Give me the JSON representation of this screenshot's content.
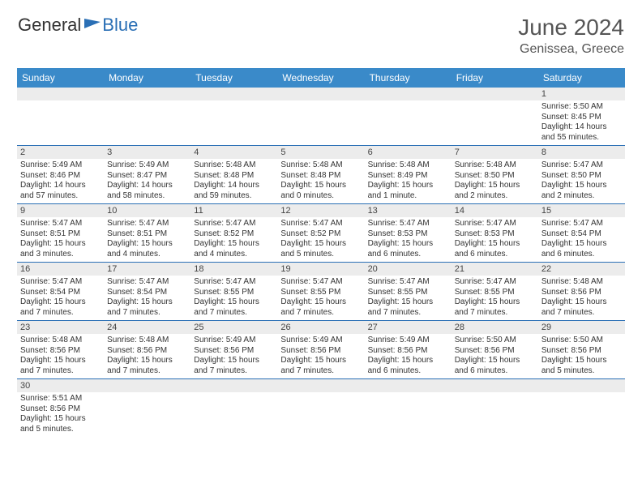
{
  "branding": {
    "general": "General",
    "blue": "Blue"
  },
  "header": {
    "month_title": "June 2024",
    "location": "Genissea, Greece"
  },
  "colors": {
    "header_bg": "#3a8ac9",
    "header_text": "#ffffff",
    "daynum_bg": "#ececec",
    "cell_text": "#333333",
    "border": "#2a6fb5",
    "brand_dark": "#333333",
    "brand_blue": "#2a6fb5"
  },
  "day_names": [
    "Sunday",
    "Monday",
    "Tuesday",
    "Wednesday",
    "Thursday",
    "Friday",
    "Saturday"
  ],
  "weeks": [
    {
      "numbers": [
        "",
        "",
        "",
        "",
        "",
        "",
        "1"
      ],
      "cells": [
        null,
        null,
        null,
        null,
        null,
        null,
        {
          "sunrise": "Sunrise: 5:50 AM",
          "sunset": "Sunset: 8:45 PM",
          "daylight1": "Daylight: 14 hours",
          "daylight2": "and 55 minutes."
        }
      ]
    },
    {
      "numbers": [
        "2",
        "3",
        "4",
        "5",
        "6",
        "7",
        "8"
      ],
      "cells": [
        {
          "sunrise": "Sunrise: 5:49 AM",
          "sunset": "Sunset: 8:46 PM",
          "daylight1": "Daylight: 14 hours",
          "daylight2": "and 57 minutes."
        },
        {
          "sunrise": "Sunrise: 5:49 AM",
          "sunset": "Sunset: 8:47 PM",
          "daylight1": "Daylight: 14 hours",
          "daylight2": "and 58 minutes."
        },
        {
          "sunrise": "Sunrise: 5:48 AM",
          "sunset": "Sunset: 8:48 PM",
          "daylight1": "Daylight: 14 hours",
          "daylight2": "and 59 minutes."
        },
        {
          "sunrise": "Sunrise: 5:48 AM",
          "sunset": "Sunset: 8:48 PM",
          "daylight1": "Daylight: 15 hours",
          "daylight2": "and 0 minutes."
        },
        {
          "sunrise": "Sunrise: 5:48 AM",
          "sunset": "Sunset: 8:49 PM",
          "daylight1": "Daylight: 15 hours",
          "daylight2": "and 1 minute."
        },
        {
          "sunrise": "Sunrise: 5:48 AM",
          "sunset": "Sunset: 8:50 PM",
          "daylight1": "Daylight: 15 hours",
          "daylight2": "and 2 minutes."
        },
        {
          "sunrise": "Sunrise: 5:47 AM",
          "sunset": "Sunset: 8:50 PM",
          "daylight1": "Daylight: 15 hours",
          "daylight2": "and 2 minutes."
        }
      ]
    },
    {
      "numbers": [
        "9",
        "10",
        "11",
        "12",
        "13",
        "14",
        "15"
      ],
      "cells": [
        {
          "sunrise": "Sunrise: 5:47 AM",
          "sunset": "Sunset: 8:51 PM",
          "daylight1": "Daylight: 15 hours",
          "daylight2": "and 3 minutes."
        },
        {
          "sunrise": "Sunrise: 5:47 AM",
          "sunset": "Sunset: 8:51 PM",
          "daylight1": "Daylight: 15 hours",
          "daylight2": "and 4 minutes."
        },
        {
          "sunrise": "Sunrise: 5:47 AM",
          "sunset": "Sunset: 8:52 PM",
          "daylight1": "Daylight: 15 hours",
          "daylight2": "and 4 minutes."
        },
        {
          "sunrise": "Sunrise: 5:47 AM",
          "sunset": "Sunset: 8:52 PM",
          "daylight1": "Daylight: 15 hours",
          "daylight2": "and 5 minutes."
        },
        {
          "sunrise": "Sunrise: 5:47 AM",
          "sunset": "Sunset: 8:53 PM",
          "daylight1": "Daylight: 15 hours",
          "daylight2": "and 6 minutes."
        },
        {
          "sunrise": "Sunrise: 5:47 AM",
          "sunset": "Sunset: 8:53 PM",
          "daylight1": "Daylight: 15 hours",
          "daylight2": "and 6 minutes."
        },
        {
          "sunrise": "Sunrise: 5:47 AM",
          "sunset": "Sunset: 8:54 PM",
          "daylight1": "Daylight: 15 hours",
          "daylight2": "and 6 minutes."
        }
      ]
    },
    {
      "numbers": [
        "16",
        "17",
        "18",
        "19",
        "20",
        "21",
        "22"
      ],
      "cells": [
        {
          "sunrise": "Sunrise: 5:47 AM",
          "sunset": "Sunset: 8:54 PM",
          "daylight1": "Daylight: 15 hours",
          "daylight2": "and 7 minutes."
        },
        {
          "sunrise": "Sunrise: 5:47 AM",
          "sunset": "Sunset: 8:54 PM",
          "daylight1": "Daylight: 15 hours",
          "daylight2": "and 7 minutes."
        },
        {
          "sunrise": "Sunrise: 5:47 AM",
          "sunset": "Sunset: 8:55 PM",
          "daylight1": "Daylight: 15 hours",
          "daylight2": "and 7 minutes."
        },
        {
          "sunrise": "Sunrise: 5:47 AM",
          "sunset": "Sunset: 8:55 PM",
          "daylight1": "Daylight: 15 hours",
          "daylight2": "and 7 minutes."
        },
        {
          "sunrise": "Sunrise: 5:47 AM",
          "sunset": "Sunset: 8:55 PM",
          "daylight1": "Daylight: 15 hours",
          "daylight2": "and 7 minutes."
        },
        {
          "sunrise": "Sunrise: 5:47 AM",
          "sunset": "Sunset: 8:55 PM",
          "daylight1": "Daylight: 15 hours",
          "daylight2": "and 7 minutes."
        },
        {
          "sunrise": "Sunrise: 5:48 AM",
          "sunset": "Sunset: 8:56 PM",
          "daylight1": "Daylight: 15 hours",
          "daylight2": "and 7 minutes."
        }
      ]
    },
    {
      "numbers": [
        "23",
        "24",
        "25",
        "26",
        "27",
        "28",
        "29"
      ],
      "cells": [
        {
          "sunrise": "Sunrise: 5:48 AM",
          "sunset": "Sunset: 8:56 PM",
          "daylight1": "Daylight: 15 hours",
          "daylight2": "and 7 minutes."
        },
        {
          "sunrise": "Sunrise: 5:48 AM",
          "sunset": "Sunset: 8:56 PM",
          "daylight1": "Daylight: 15 hours",
          "daylight2": "and 7 minutes."
        },
        {
          "sunrise": "Sunrise: 5:49 AM",
          "sunset": "Sunset: 8:56 PM",
          "daylight1": "Daylight: 15 hours",
          "daylight2": "and 7 minutes."
        },
        {
          "sunrise": "Sunrise: 5:49 AM",
          "sunset": "Sunset: 8:56 PM",
          "daylight1": "Daylight: 15 hours",
          "daylight2": "and 7 minutes."
        },
        {
          "sunrise": "Sunrise: 5:49 AM",
          "sunset": "Sunset: 8:56 PM",
          "daylight1": "Daylight: 15 hours",
          "daylight2": "and 6 minutes."
        },
        {
          "sunrise": "Sunrise: 5:50 AM",
          "sunset": "Sunset: 8:56 PM",
          "daylight1": "Daylight: 15 hours",
          "daylight2": "and 6 minutes."
        },
        {
          "sunrise": "Sunrise: 5:50 AM",
          "sunset": "Sunset: 8:56 PM",
          "daylight1": "Daylight: 15 hours",
          "daylight2": "and 5 minutes."
        }
      ]
    },
    {
      "numbers": [
        "30",
        "",
        "",
        "",
        "",
        "",
        ""
      ],
      "cells": [
        {
          "sunrise": "Sunrise: 5:51 AM",
          "sunset": "Sunset: 8:56 PM",
          "daylight1": "Daylight: 15 hours",
          "daylight2": "and 5 minutes."
        },
        null,
        null,
        null,
        null,
        null,
        null
      ]
    }
  ]
}
